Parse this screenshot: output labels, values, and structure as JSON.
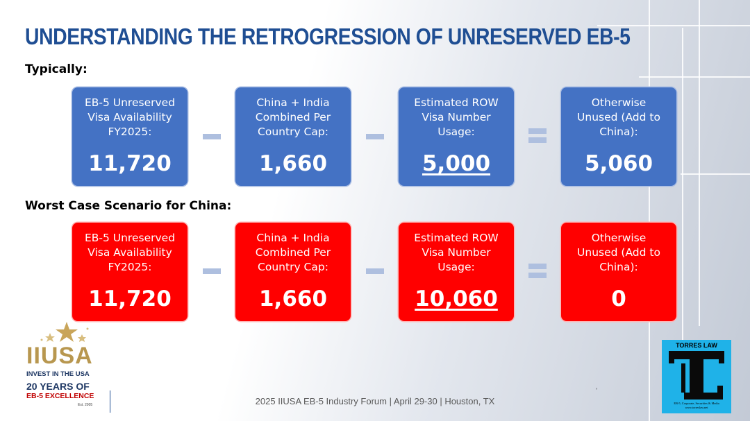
{
  "title": "UNDERSTANDING THE RETROGRESSION OF UNRESERVED EB-5",
  "sections": [
    {
      "label": "Typically:",
      "cards": [
        {
          "label": "EB-5 Unreserved\nVisa Availability\nFY2025:",
          "value": "11,720"
        },
        {
          "label": "China + India\nCombined Per\nCountry Cap:",
          "value": "1,660"
        },
        {
          "label": "Estimated ROW\nVisa Number\nUsage:",
          "value": "5,000"
        },
        {
          "label": "Otherwise\nUnused (Add to\nChina):",
          "value": "5,060"
        }
      ],
      "color": "#4472c4"
    },
    {
      "label": "Worst Case Scenario for China:",
      "cards": [
        {
          "label": "EB-5 Unreserved\nVisa Availability\nFY2025:",
          "value": "11,720"
        },
        {
          "label": "China + India\nCombined Per\nCountry Cap:",
          "value": "1,660"
        },
        {
          "label": "Estimated ROW\nVisa Number\nUsage:",
          "value": "10,060"
        },
        {
          "label": "Otherwise\nUnused (Add to\nChina):",
          "value": "0"
        }
      ],
      "color": "#ff0000"
    }
  ],
  "operators": [
    "minus",
    "minus",
    "equals"
  ],
  "iiusa_logo": {
    "name": "IIUSA",
    "tagline": "INVEST IN THE USA",
    "years": "20 YEARS OF",
    "excellence": "EB-5 EXCELLENCE",
    "established": "Est. 2005"
  },
  "footer": "2025 IIUSA EB-5 Industry Forum | April 29-30 | Houston, TX",
  "torres_logo": {
    "title": "TORRES LAW",
    "subtitle": "EB-5, Corporate, Securities & Media",
    "url": "www.torreslaw.net"
  },
  "colors": {
    "title": "#1f4e93",
    "blue_card": "#4472c4",
    "red_card": "#ff0000",
    "operator": "#aebfdf",
    "gold": "#b8974f"
  }
}
